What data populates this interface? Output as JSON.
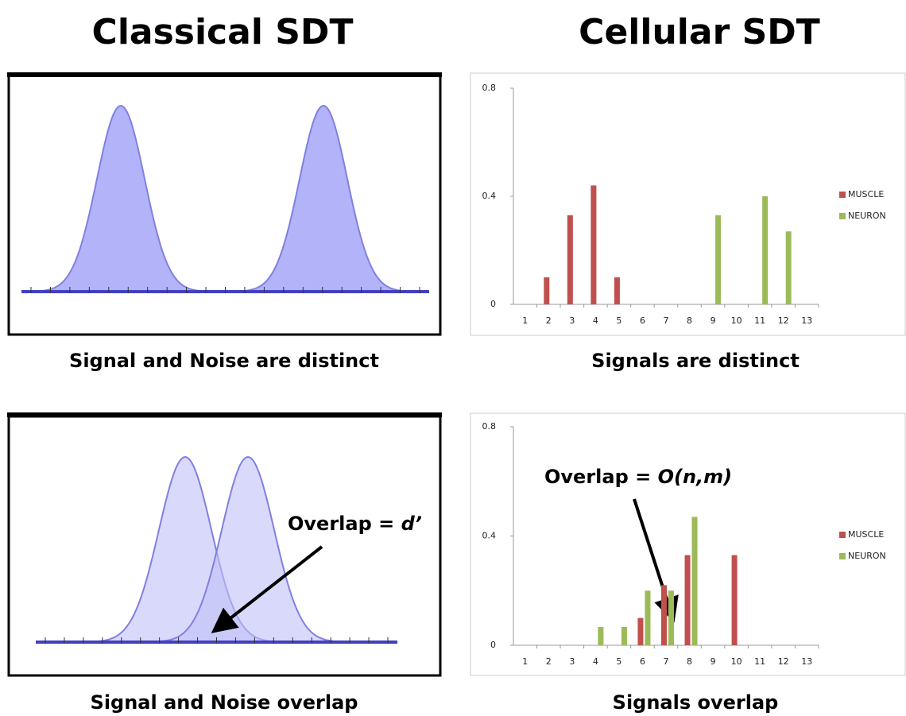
{
  "headings": [
    "Classical SDT",
    "Cellular SDT"
  ],
  "captions": [
    "Signal and Noise are distinct",
    "Signals are distinct",
    "Signal and Noise overlap",
    "Signals overlap"
  ],
  "annotations": [
    {
      "label": "Overlap = ",
      "symbol": "d’"
    },
    {
      "label": "Overlap = ",
      "symbol": "O(n,m)"
    }
  ],
  "chart_data": [
    {
      "type": "bar",
      "categories": [
        "1",
        "2",
        "3",
        "4",
        "5",
        "6",
        "7",
        "8",
        "9",
        "10",
        "11",
        "12",
        "13"
      ],
      "series": [
        {
          "name": "MUSCLE",
          "color": "#c0504d",
          "values": [
            0,
            0.1,
            0.33,
            0.44,
            0.1,
            0,
            0,
            0,
            0,
            0,
            0,
            0,
            0
          ]
        },
        {
          "name": "NEURON",
          "color": "#9bbb59",
          "values": [
            0,
            0,
            0,
            0,
            0,
            0,
            0,
            0,
            0.33,
            0,
            0.4,
            0.27,
            0
          ]
        }
      ],
      "ylim": [
        0,
        0.8
      ],
      "yticks": [
        0,
        0.4,
        0.8
      ],
      "legend": "right"
    },
    {
      "type": "bar",
      "categories": [
        "1",
        "2",
        "3",
        "4",
        "5",
        "6",
        "7",
        "8",
        "9",
        "10",
        "11",
        "12",
        "13"
      ],
      "series": [
        {
          "name": "MUSCLE",
          "color": "#c0504d",
          "values": [
            0,
            0,
            0,
            0,
            0,
            0.1,
            0.22,
            0.33,
            0,
            0.33,
            0,
            0,
            0
          ]
        },
        {
          "name": "NEURON",
          "color": "#9bbb59",
          "values": [
            0,
            0,
            0,
            0.067,
            0.067,
            0.2,
            0.2,
            0.47,
            0,
            0,
            0,
            0,
            0
          ]
        }
      ],
      "ylim": [
        0,
        0.8
      ],
      "yticks": [
        0,
        0.4,
        0.8
      ],
      "legend": "right"
    }
  ]
}
